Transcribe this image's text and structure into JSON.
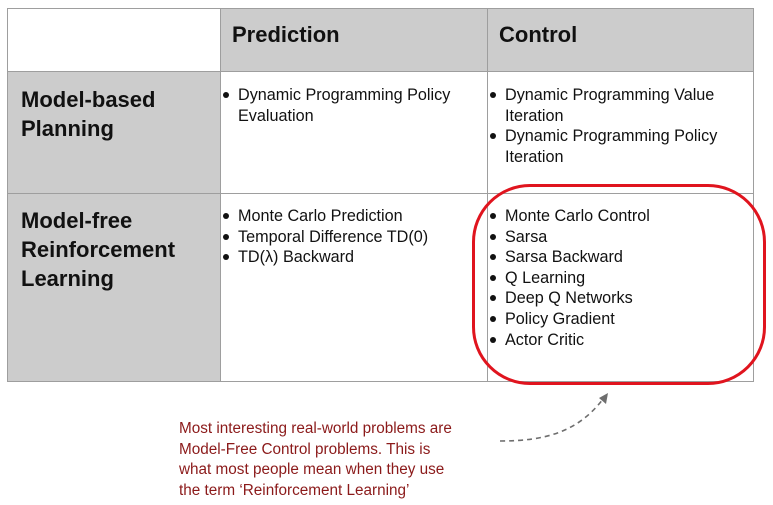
{
  "table": {
    "columns": [
      "Prediction",
      "Control"
    ],
    "rows": [
      {
        "heading_lines": [
          "Model-based",
          "Planning"
        ],
        "prediction": [
          "Dynamic Programming Policy Evaluation"
        ],
        "control": [
          "Dynamic Programming Value Iteration",
          "Dynamic Programming Policy Iteration"
        ]
      },
      {
        "heading_lines": [
          "Model-free",
          "Reinforcement",
          "Learning"
        ],
        "prediction": [
          "Monte Carlo Prediction",
          "Temporal Difference TD(0)",
          "TD(λ) Backward"
        ],
        "control": [
          "Monte Carlo Control",
          "Sarsa",
          "Sarsa Backward",
          "Q Learning",
          "Deep Q Networks",
          "Policy Gradient",
          "Actor Critic"
        ]
      }
    ]
  },
  "annotation": {
    "lines": [
      "Most interesting real-world problems are",
      "Model-Free Control problems. This is",
      "what most people mean when they use",
      "the term ‘Reinforcement Learning’"
    ]
  },
  "colors": {
    "header_fill": "#cccccc",
    "grid": "#9e9e9e",
    "highlight": "#e0141e",
    "annotation_text": "#8b1a1a",
    "arrow": "#6e6e6e"
  }
}
